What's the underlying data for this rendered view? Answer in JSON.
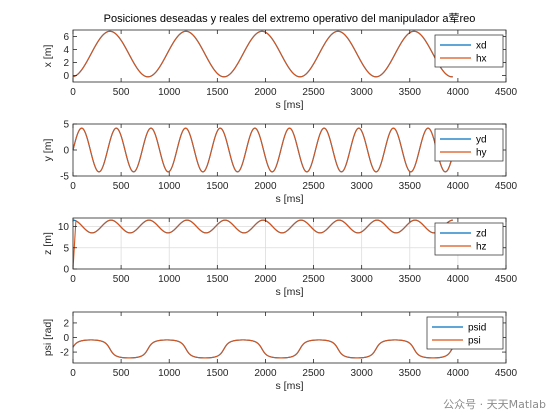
{
  "figure_title": "Posiciones deseadas y reales del extremo operativo del manipulador a荤reo",
  "watermark": "公众号 · 天天Matlab",
  "colors": {
    "desired": "#0072BD",
    "real": "#D95319",
    "axis": "#262626",
    "grid": "#dcdcdc"
  },
  "chart_data": [
    {
      "type": "line",
      "ylabel": "x [m]",
      "xlabel": "s [ms]",
      "xlim": [
        0,
        4500
      ],
      "ylim": [
        -1,
        7
      ],
      "xticks": [
        0,
        500,
        1000,
        1500,
        2000,
        2500,
        3000,
        3500,
        4000,
        4500
      ],
      "yticks": [
        0,
        2,
        4,
        6
      ],
      "grid": false,
      "legend_position": "top-right",
      "series": [
        {
          "name": "xd",
          "function": {
            "kind": "sine",
            "offset": 3.3,
            "amplitude": 3.5,
            "period": 790,
            "phase_deg": -85
          }
        },
        {
          "name": "hx",
          "function": {
            "kind": "sine",
            "offset": 3.3,
            "amplitude": 3.5,
            "period": 790,
            "phase_deg": -85
          }
        }
      ]
    },
    {
      "type": "line",
      "ylabel": "y [m]",
      "xlabel": "s [ms]",
      "xlim": [
        0,
        4500
      ],
      "ylim": [
        -5,
        5
      ],
      "xticks": [
        0,
        500,
        1000,
        1500,
        2000,
        2500,
        3000,
        3500,
        4000,
        4500
      ],
      "yticks": [
        -5,
        0,
        5
      ],
      "grid": false,
      "legend_position": "top-right",
      "series": [
        {
          "name": "yd",
          "function": {
            "kind": "sine",
            "offset": 0,
            "amplitude": 4.2,
            "period": 360,
            "phase_deg": 0
          }
        },
        {
          "name": "hy",
          "function": {
            "kind": "sine",
            "offset": 0,
            "amplitude": 4.2,
            "period": 360,
            "phase_deg": 0
          }
        }
      ]
    },
    {
      "type": "line",
      "ylabel": "z [m]",
      "xlabel": "s [ms]",
      "xlim": [
        0,
        4500
      ],
      "ylim": [
        0,
        12
      ],
      "xticks": [
        0,
        500,
        1000,
        1500,
        2000,
        2500,
        3000,
        3500,
        4000,
        4500
      ],
      "yticks": [
        0,
        5,
        10
      ],
      "grid": true,
      "legend_position": "top-right",
      "series": [
        {
          "name": "zd",
          "function": {
            "kind": "sine",
            "offset": 10,
            "amplitude": 1.5,
            "period": 395,
            "phase_deg": 90
          }
        },
        {
          "name": "hz",
          "function": {
            "kind": "sine",
            "offset": 10,
            "amplitude": 1.5,
            "period": 395,
            "phase_deg": 90,
            "rise_from": 0,
            "rise_time": 30
          }
        }
      ]
    },
    {
      "type": "line",
      "ylabel": "psi [rad]",
      "xlabel": "s [ms]",
      "xlim": [
        0,
        4500
      ],
      "ylim": [
        -3.5,
        3.5
      ],
      "xticks": [
        0,
        500,
        1000,
        1500,
        2000,
        2500,
        3000,
        3500,
        4000,
        4500
      ],
      "yticks": [
        -2,
        0,
        2
      ],
      "grid": false,
      "legend_position": "top-right",
      "series": [
        {
          "name": "psid",
          "function": {
            "kind": "wrapped_heading",
            "period": 790,
            "phase_deg": -85
          }
        },
        {
          "name": "psi",
          "function": {
            "kind": "wrapped_heading",
            "period": 790,
            "phase_deg": -85
          }
        }
      ]
    }
  ]
}
